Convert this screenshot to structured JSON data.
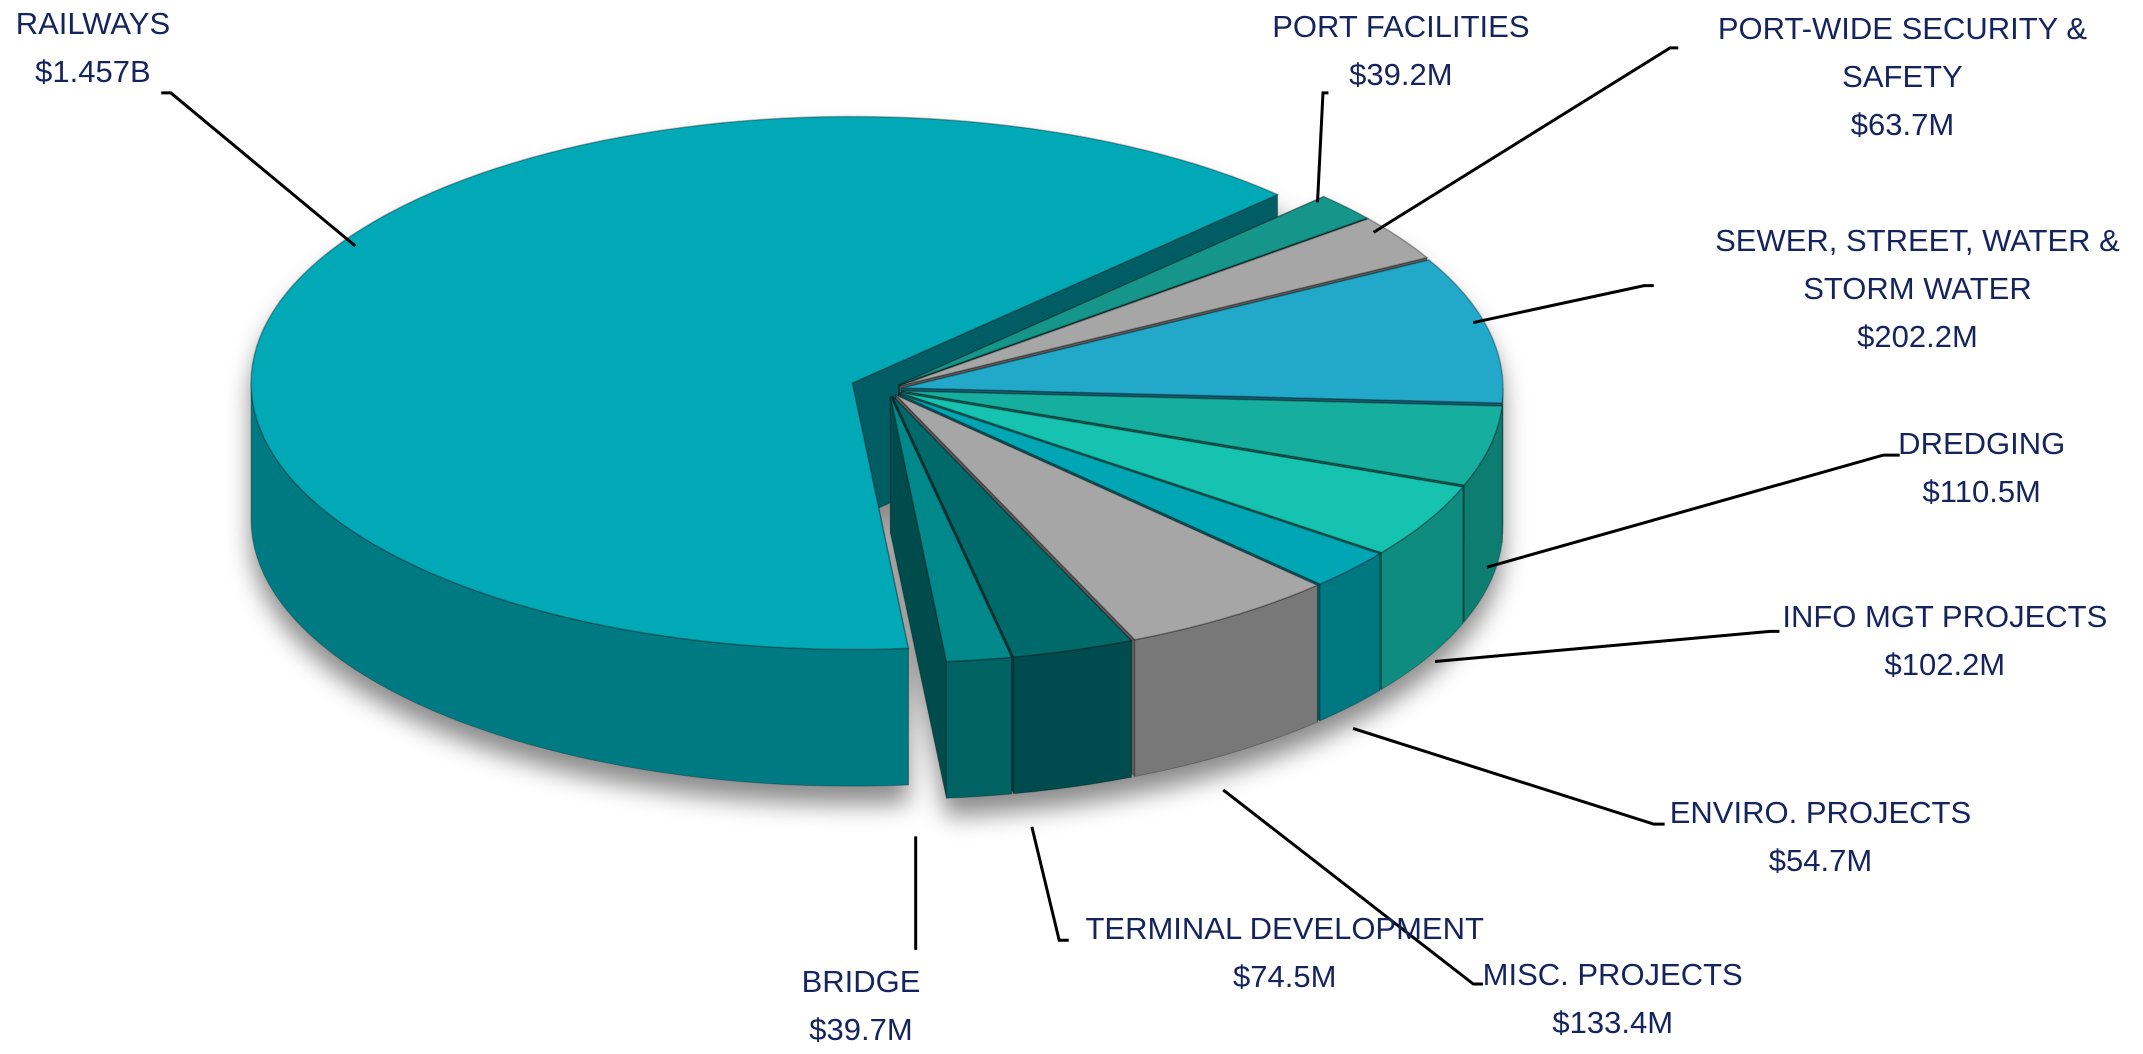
{
  "chart_data": {
    "type": "pie3d",
    "categories": [
      "RAILWAYS",
      "PORT FACILITIES",
      "PORT-WIDE SECURITY & SAFETY",
      "SEWER, STREET, WATER & STORM WATER",
      "DREDGING",
      "INFO MGT PROJECTS",
      "ENVIRO. PROJECTS",
      "MISC. PROJECTS",
      "TERMINAL DEVELOPMENT",
      "BRIDGE"
    ],
    "values": [
      1457,
      39.2,
      63.7,
      202.2,
      110.5,
      102.2,
      54.7,
      133.4,
      74.5,
      39.7
    ],
    "value_labels": [
      "$1.457B",
      "$39.2M",
      "$63.7M",
      "$202.2M",
      "$110.5M",
      "$102.2M",
      "$54.7M",
      "$133.4M",
      "$74.5M",
      "$39.7M"
    ],
    "colors": [
      "#00a9b5",
      "#13968a",
      "#a6a6a6",
      "#23a8c9",
      "#13ae9e",
      "#16c2b0",
      "#00a6b4",
      "#a6a6a6",
      "#006a6b",
      "#00888a"
    ]
  }
}
